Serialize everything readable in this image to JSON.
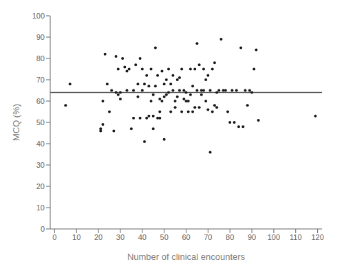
{
  "chart_data": {
    "type": "scatter",
    "x": [
      5,
      7,
      21,
      21,
      22,
      22,
      23,
      24,
      25,
      26,
      27,
      28,
      28,
      29,
      29,
      30,
      30,
      31,
      32,
      33,
      33,
      34,
      35,
      36,
      36,
      37,
      38,
      38,
      39,
      39,
      40,
      40,
      41,
      41,
      42,
      42,
      43,
      43,
      44,
      44,
      45,
      45,
      45,
      46,
      46,
      47,
      47,
      48,
      48,
      48,
      49,
      49,
      50,
      50,
      50,
      51,
      51,
      52,
      52,
      53,
      53,
      54,
      54,
      55,
      55,
      56,
      56,
      57,
      57,
      58,
      58,
      59,
      59,
      60,
      60,
      61,
      61,
      62,
      62,
      63,
      63,
      64,
      64,
      65,
      65,
      66,
      66,
      67,
      67,
      68,
      68,
      69,
      69,
      70,
      70,
      71,
      71,
      72,
      72,
      73,
      73,
      74,
      74,
      75,
      76,
      77,
      78,
      79,
      80,
      81,
      82,
      83,
      84,
      85,
      86,
      87,
      88,
      89,
      90,
      91,
      92,
      93,
      119
    ],
    "values": [
      58,
      68,
      47,
      46,
      49,
      60,
      82,
      68,
      55,
      65,
      46,
      81,
      64,
      63,
      75,
      64,
      61,
      80,
      76,
      65,
      74,
      75,
      47,
      52,
      65,
      77,
      68,
      62,
      52,
      80,
      65,
      75,
      41,
      68,
      72,
      52,
      67,
      53,
      60,
      75,
      63,
      47,
      53,
      67,
      85,
      72,
      52,
      55,
      52,
      61,
      60,
      74,
      42,
      62,
      68,
      70,
      63,
      75,
      64,
      68,
      55,
      65,
      72,
      57,
      60,
      70,
      62,
      65,
      71,
      55,
      75,
      61,
      65,
      64,
      60,
      55,
      60,
      63,
      75,
      67,
      55,
      75,
      57,
      87,
      65,
      57,
      77,
      65,
      63,
      75,
      65,
      70,
      60,
      56,
      72,
      65,
      36,
      55,
      75,
      58,
      78,
      64,
      57,
      65,
      89,
      65,
      65,
      55,
      50,
      65,
      50,
      65,
      48,
      85,
      48,
      65,
      58,
      65,
      64,
      75,
      84,
      51,
      53
    ],
    "color": "#1a1a1a",
    "hline": {
      "value": 64,
      "color": "#555555"
    },
    "xlabel": "Number of clinical encounters",
    "ylabel": "MCQ (%)",
    "xlim": [
      -2,
      122
    ],
    "ylim": [
      0,
      100
    ],
    "xticks": [
      0,
      10,
      20,
      30,
      40,
      50,
      60,
      70,
      80,
      90,
      100,
      110,
      120
    ],
    "yticks": [
      0,
      10,
      20,
      30,
      40,
      50,
      60,
      70,
      80,
      90,
      100
    ],
    "grid": false
  }
}
